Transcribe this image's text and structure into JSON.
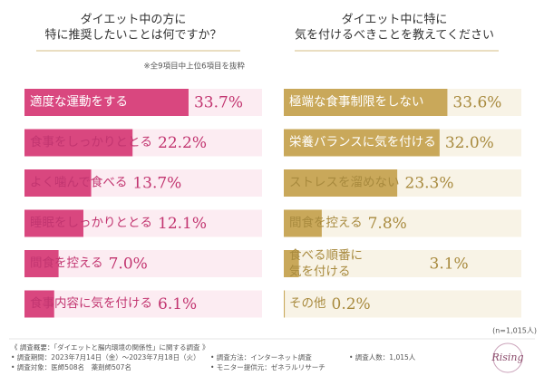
{
  "chart_data": [
    {
      "type": "bar",
      "title": "ダイエット中の方に\n特に推奨したいことは何ですか？",
      "note": "※全9項目中上位6項目を抜粋",
      "color": "#d9477f",
      "categories": [
        "適度な運動をする",
        "食事をしっかりととる",
        "よく噛んで食べる",
        "睡眠をしっかりととる",
        "間食を控える",
        "食事内容に気を付ける"
      ],
      "values": [
        33.7,
        22.2,
        13.7,
        12.1,
        7.0,
        6.1
      ],
      "value_labels": [
        "33.7%",
        "22.2%",
        "13.7%",
        "12.1%",
        "7.0%",
        "6.1%"
      ]
    },
    {
      "type": "bar",
      "title": "ダイエット中に特に\n気を付けるべきことを教えてください",
      "color": "#c9a85a",
      "categories": [
        "極端な食事制限をしない",
        "栄養バランスに気を付ける",
        "ストレスを溜めない",
        "間食を控える",
        "食べる順番に\n気を付ける",
        "その他"
      ],
      "values": [
        33.6,
        32.0,
        23.3,
        7.8,
        3.1,
        0.2
      ],
      "value_labels": [
        "33.6%",
        "32.0%",
        "23.3%",
        "7.8%",
        "3.1%",
        "0.2%"
      ]
    }
  ],
  "sample": "(n=1,015人)",
  "footer": {
    "col1": [
      "《 調査概要：「ダイエットと腸内環境の関係性」に関する調査 》",
      "• 調査期間：2023年7月14日（金）～2023年7月18日（火）",
      "• 調査対象：医師508名　薬剤師507名"
    ],
    "col2": [
      "• 調査方法：インターネット調査",
      "• モニター提供元：ゼネラルリサーチ"
    ],
    "col3": [
      "• 調査人数：1,015人"
    ]
  },
  "logo": "Rising"
}
